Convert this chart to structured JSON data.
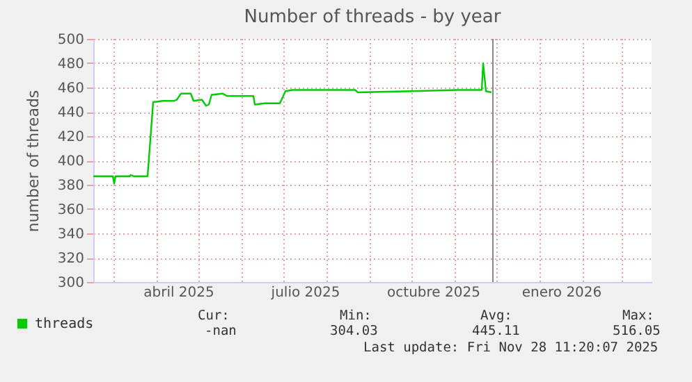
{
  "chart_data": {
    "type": "line",
    "title": "Number of threads - by year",
    "ylabel": "number of threads",
    "x": [
      "2025-02-14",
      "2025-02-28",
      "2025-03-01",
      "2025-03-02",
      "2025-03-12",
      "2025-03-13",
      "2025-03-15",
      "2025-03-25",
      "2025-03-29",
      "2025-04-05",
      "2025-04-13",
      "2025-04-15",
      "2025-04-18",
      "2025-04-25",
      "2025-04-27",
      "2025-05-03",
      "2025-05-06",
      "2025-05-08",
      "2025-05-10",
      "2025-05-18",
      "2025-05-21",
      "2025-06-09",
      "2025-06-10",
      "2025-06-17",
      "2025-06-28",
      "2025-07-02",
      "2025-07-07",
      "2025-08-21",
      "2025-08-23",
      "2025-10-01",
      "2025-11-03",
      "2025-11-20",
      "2025-11-21",
      "2025-11-23",
      "2025-11-27"
    ],
    "series": [
      {
        "name": "threads",
        "color": "#00cc00",
        "values": [
          387,
          387,
          381,
          387,
          387,
          388,
          387,
          387,
          448,
          449,
          449,
          450,
          455,
          455,
          449,
          450,
          445,
          446,
          454,
          455,
          453,
          453,
          446,
          447,
          447,
          457,
          458,
          458,
          456,
          457,
          458,
          458,
          480,
          457,
          456
        ]
      }
    ],
    "xlim": [
      "2025-02-14",
      "2026-03-22"
    ],
    "xticks": [
      {
        "value": "2025-03-01",
        "label": null
      },
      {
        "value": "2025-04-01",
        "label": null
      },
      {
        "value": "2025-04-16",
        "label": "abril 2025"
      },
      {
        "value": "2025-05-01",
        "label": null
      },
      {
        "value": "2025-06-01",
        "label": null
      },
      {
        "value": "2025-07-01",
        "label": null
      },
      {
        "value": "2025-07-16",
        "label": "julio 2025"
      },
      {
        "value": "2025-08-01",
        "label": null
      },
      {
        "value": "2025-09-01",
        "label": null
      },
      {
        "value": "2025-10-01",
        "label": null
      },
      {
        "value": "2025-10-16",
        "label": "octubre 2025"
      },
      {
        "value": "2025-11-01",
        "label": null
      },
      {
        "value": "2025-12-01",
        "label": null
      },
      {
        "value": "2026-01-01",
        "label": null
      },
      {
        "value": "2026-01-16",
        "label": "enero 2026"
      },
      {
        "value": "2026-02-01",
        "label": null
      },
      {
        "value": "2026-03-01",
        "label": null
      }
    ],
    "ylim": [
      300,
      500
    ],
    "yticks": [
      300,
      320,
      340,
      360,
      380,
      400,
      420,
      440,
      460,
      480,
      500
    ],
    "ref_lines": [
      {
        "axis": "x",
        "value": "2025-11-28",
        "color": "#888888"
      }
    ],
    "grid": true,
    "legend": "bottom left",
    "annotations": [
      "Cur:",
      "Min:",
      "Avg:",
      "Max:",
      "-nan",
      "304.03",
      "445.11",
      "516.05",
      "Last update: Fri Nov 28 11:20:07 2025"
    ]
  }
}
